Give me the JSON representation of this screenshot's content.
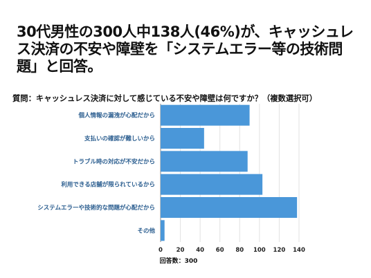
{
  "headline": "30代男性の300人中138人(46%)が、キャッシュレス決済の不安や障壁を「システムエラー等の技術問題」と回答。",
  "question": "質問：キャッシュレス決済に対して感じている不安や障壁は何ですか？（複数選択可）",
  "chart_data": {
    "type": "bar",
    "orientation": "horizontal",
    "categories": [
      "個人情報の漏洩が心配だから",
      "支払いの確認が難しいから",
      "トラブル時の対応が不安だから",
      "利用できる店舗が限られているから",
      "システムエラーや技術的な問題が心配だから",
      "その他"
    ],
    "values": [
      90,
      44,
      88,
      103,
      138,
      4
    ],
    "xlim": [
      0,
      140
    ],
    "x_ticks": [
      "0",
      "20",
      "40",
      "60",
      "80",
      "100",
      "120",
      "140"
    ],
    "xlabel": "回答数：300",
    "grid": true,
    "bar_color": "#4a97d9"
  }
}
